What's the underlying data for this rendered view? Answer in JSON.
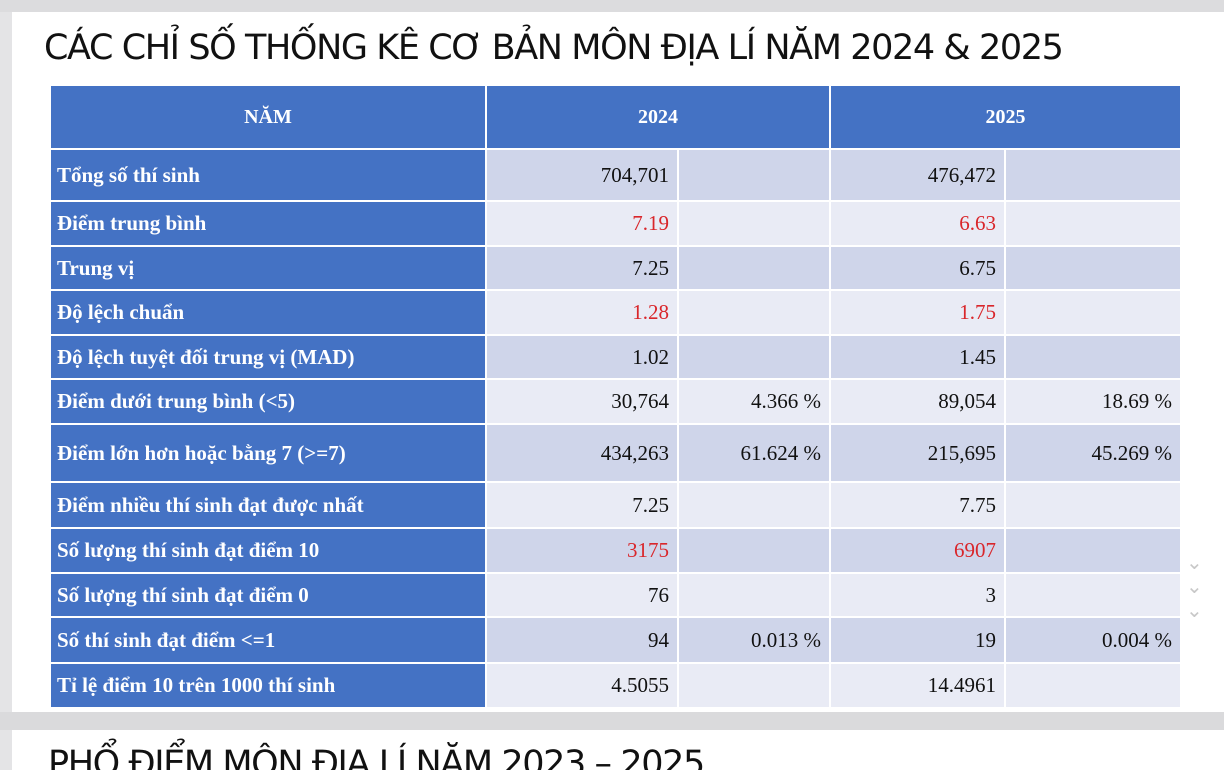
{
  "title": "CÁC CHỈ SỐ THỐNG KÊ CƠ BẢN MÔN ĐỊA LÍ NĂM 2024 & 2025",
  "next_title": "PHỔ ĐIỂM MÔN ĐỊA LÍ NĂM 2023 – 2025",
  "table": {
    "headers": [
      "NĂM",
      "2024",
      "2025"
    ],
    "rows": [
      {
        "label": "Tổng số thí sinh",
        "v2024": "704,701",
        "p2024": "",
        "v2025": "476,472",
        "p2025": "",
        "red": false
      },
      {
        "label": "Điểm trung bình",
        "v2024": "7.19",
        "p2024": "",
        "v2025": "6.63",
        "p2025": "",
        "red": true
      },
      {
        "label": "Trung vị",
        "v2024": "7.25",
        "p2024": "",
        "v2025": "6.75",
        "p2025": "",
        "red": false
      },
      {
        "label": "Độ lệch chuẩn",
        "v2024": "1.28",
        "p2024": "",
        "v2025": "1.75",
        "p2025": "",
        "red": true
      },
      {
        "label": "Độ lệch tuyệt đối trung vị (MAD)",
        "v2024": "1.02",
        "p2024": "",
        "v2025": "1.45",
        "p2025": "",
        "red": false
      },
      {
        "label": "Điểm dưới trung bình (<5)",
        "v2024": "30,764",
        "p2024": "4.366 %",
        "v2025": "89,054",
        "p2025": "18.69 %",
        "red": false
      },
      {
        "label": "Điểm lớn hơn hoặc bằng 7 (>=7)",
        "v2024": "434,263",
        "p2024": "61.624 %",
        "v2025": "215,695",
        "p2025": "45.269 %",
        "red": false
      },
      {
        "label": "Điểm nhiều thí sinh đạt được nhất",
        "v2024": "7.25",
        "p2024": "",
        "v2025": "7.75",
        "p2025": "",
        "red": false
      },
      {
        "label": "Số lượng thí sinh đạt điểm 10",
        "v2024": "3175",
        "p2024": "",
        "v2025": "6907",
        "p2025": "",
        "red": true
      },
      {
        "label": "Số lượng thí sinh đạt điểm 0",
        "v2024": "76",
        "p2024": "",
        "v2025": "3",
        "p2025": "",
        "red": false
      },
      {
        "label": "Số thí sinh đạt điểm <=1",
        "v2024": "94",
        "p2024": "0.013 %",
        "v2025": "19",
        "p2025": "0.004 %",
        "red": false
      },
      {
        "label": "Tỉ lệ điểm 10 trên 1000 thí sinh",
        "v2024": "4.5055",
        "p2024": "",
        "v2025": "14.4961",
        "p2025": "",
        "red": false
      }
    ]
  },
  "colors": {
    "header": "#4472c4",
    "band_dark": "#cfd5ea",
    "band_light": "#e9ebf5",
    "highlight": "#d9262b"
  }
}
